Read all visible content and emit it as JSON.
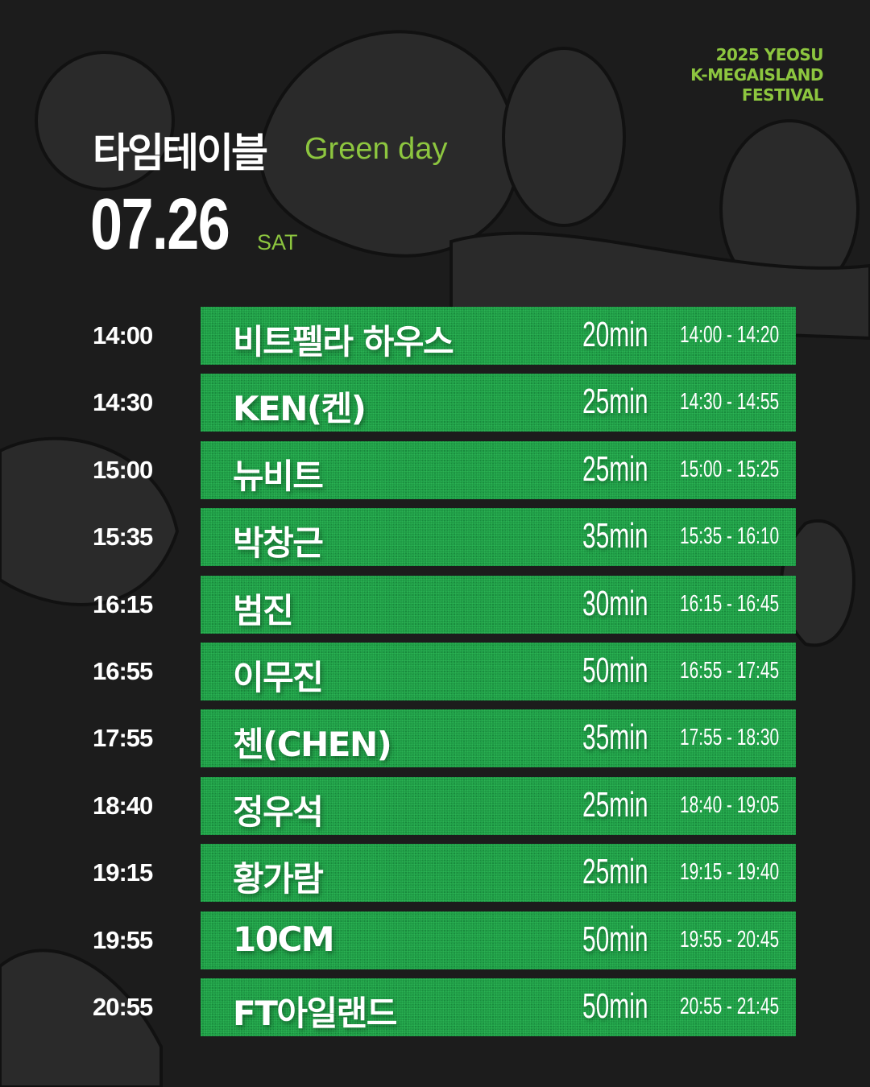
{
  "festival": {
    "line1": "2025 YEOSU",
    "line2": "K-MEGAISLAND",
    "line3": "FESTIVAL"
  },
  "header": {
    "title": "타임테이블",
    "subtitle": "Green day",
    "date": "07.26",
    "weekday": "SAT"
  },
  "colors": {
    "accent": "#8dc63f",
    "bar": "#1f9a45",
    "background": "#1c1c1c"
  },
  "schedule": [
    {
      "start": "14:00",
      "artist": "비트펠라 하우스",
      "duration": "20min",
      "range": "14:00 - 14:20"
    },
    {
      "start": "14:30",
      "artist": "KEN(켄)",
      "duration": "25min",
      "range": "14:30 - 14:55"
    },
    {
      "start": "15:00",
      "artist": "뉴비트",
      "duration": "25min",
      "range": "15:00 - 15:25"
    },
    {
      "start": "15:35",
      "artist": "박창근",
      "duration": "35min",
      "range": "15:35 - 16:10"
    },
    {
      "start": "16:15",
      "artist": "범진",
      "duration": "30min",
      "range": "16:15 - 16:45"
    },
    {
      "start": "16:55",
      "artist": "이무진",
      "duration": "50min",
      "range": "16:55 - 17:45"
    },
    {
      "start": "17:55",
      "artist": "첸(CHEN)",
      "duration": "35min",
      "range": "17:55 - 18:30"
    },
    {
      "start": "18:40",
      "artist": "정우석",
      "duration": "25min",
      "range": "18:40 - 19:05"
    },
    {
      "start": "19:15",
      "artist": "황가람",
      "duration": "25min",
      "range": "19:15 - 19:40"
    },
    {
      "start": "19:55",
      "artist": "10CM",
      "duration": "50min",
      "range": "19:55 - 20:45"
    },
    {
      "start": "20:55",
      "artist": "FT아일랜드",
      "duration": "50min",
      "range": "20:55 - 21:45"
    }
  ]
}
